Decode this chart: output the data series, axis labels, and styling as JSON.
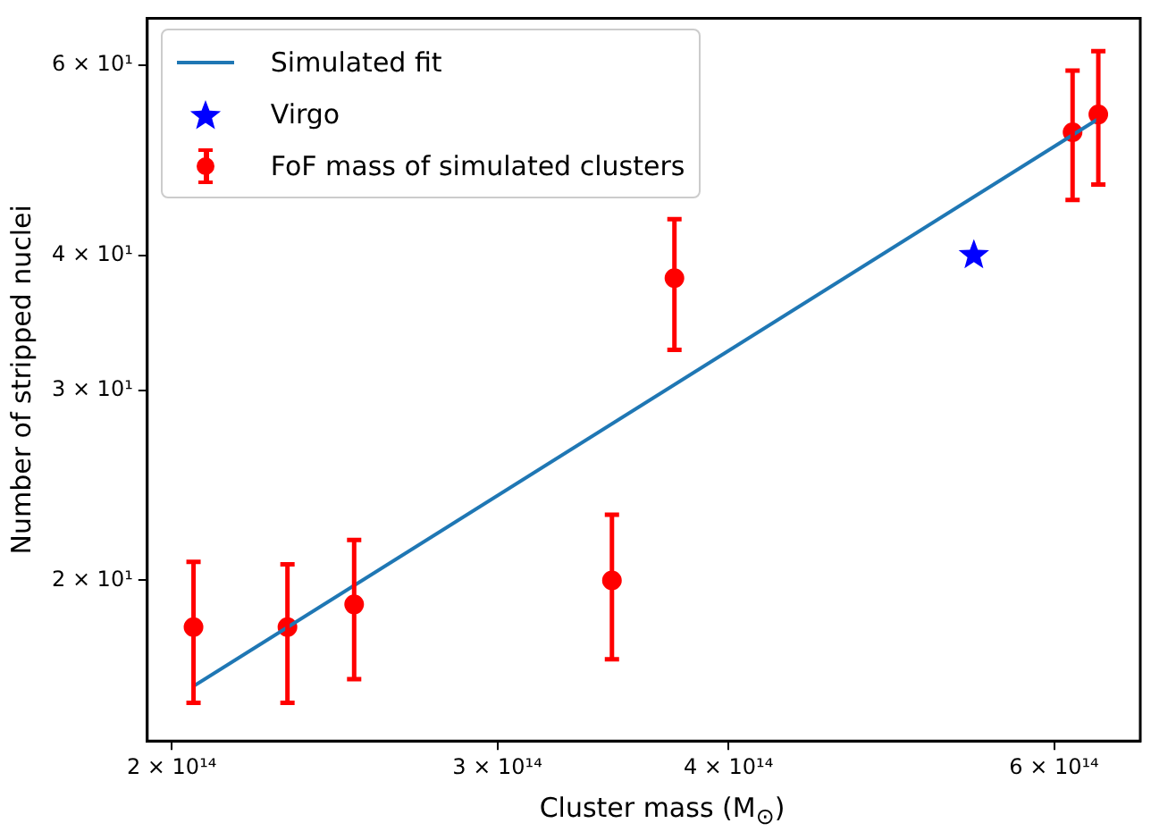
{
  "chart_data": {
    "type": "scatter",
    "xlabel": "Cluster mass (M$_{⊙}$)",
    "ylabel": "Number of stripped nuclei",
    "log": "xy",
    "grid": false,
    "legend": "top left",
    "xlim": [
      194000000000000.0,
      668000000000000.0
    ],
    "xticks": [
      {
        "value": 200000000000000.0,
        "label": "2 × 10¹⁴"
      },
      {
        "value": 300000000000000.0,
        "label": "3 × 10¹⁴"
      },
      {
        "value": 400000000000000.0,
        "label": "4 × 10¹⁴"
      },
      {
        "value": 600000000000000.0,
        "label": "6 × 10¹⁴"
      }
    ],
    "ylim": [
      14.2,
      66.3
    ],
    "yticks": [
      {
        "value": 20,
        "label": "2 × 10¹"
      },
      {
        "value": 30,
        "label": "3 × 10¹"
      },
      {
        "value": 40,
        "label": "4 × 10¹"
      },
      {
        "value": 60,
        "label": "6 × 10¹"
      }
    ],
    "series": [
      {
        "name": "Simulated fit",
        "type": "line",
        "color": "#1f77b4",
        "marker": "none",
        "line_style": "solid",
        "x": [
          205500000000000.0,
          634000000000000.0
        ],
        "values": [
          15.96,
          53.5
        ]
      },
      {
        "name": "Virgo",
        "type": "scatter",
        "color": "#0000ff",
        "marker": "star",
        "x": [
          543000000000000.0
        ],
        "values": [
          40
        ]
      },
      {
        "name": "FoF mass of simulated clusters",
        "type": "scatter",
        "color": "#ff0000",
        "marker": "circle",
        "x": [
          205500000000000.0,
          231000000000000.0,
          251000000000000.0,
          346000000000000.0,
          374000000000000.0,
          614000000000000.0,
          634000000000000.0
        ],
        "values": [
          18.1,
          18.1,
          19.0,
          20,
          38.1,
          52.0,
          54.0
        ],
        "errors": [
          [
            15.4,
            20.8
          ],
          [
            15.4,
            20.7
          ],
          [
            16.2,
            21.8
          ],
          [
            16.9,
            23.0
          ],
          [
            32.7,
            43.2
          ],
          [
            45.0,
            59.3
          ],
          [
            46.5,
            61.8
          ]
        ]
      }
    ]
  }
}
